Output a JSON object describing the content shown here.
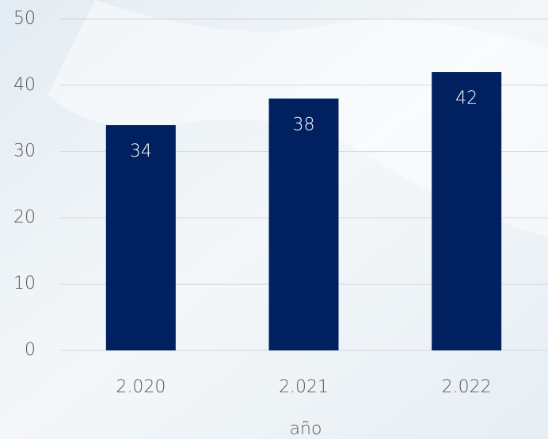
{
  "chart_data": {
    "type": "bar",
    "x_label": "año",
    "categories": [
      "2.020",
      "2.021",
      "2.022"
    ],
    "values": [
      34,
      38,
      42
    ],
    "color": "#002060",
    "ylim": [
      0,
      50
    ],
    "yticks": [
      0,
      10,
      20,
      30,
      40,
      50
    ],
    "grid": true
  }
}
